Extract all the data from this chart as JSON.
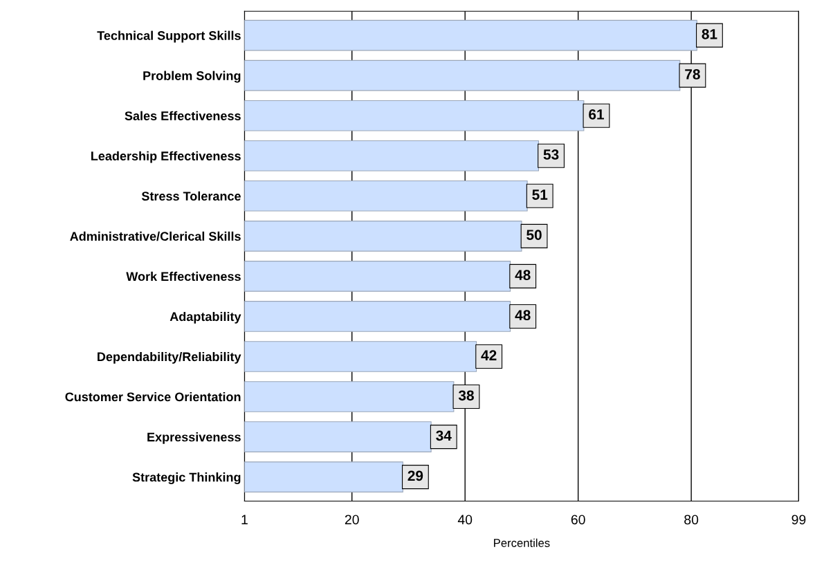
{
  "chart_data": {
    "type": "bar",
    "orientation": "horizontal",
    "xlabel": "Percentiles",
    "categories": [
      "Technical Support Skills",
      "Problem Solving",
      "Sales Effectiveness",
      "Leadership Effectiveness",
      "Stress Tolerance",
      "Administrative/Clerical Skills",
      "Work Effectiveness",
      "Adaptability",
      "Dependability/Reliability",
      "Customer Service Orientation",
      "Expressiveness",
      "Strategic Thinking"
    ],
    "values": [
      81,
      78,
      61,
      53,
      51,
      50,
      48,
      48,
      42,
      38,
      34,
      29
    ],
    "color": "#cce0ff",
    "xlim": [
      1,
      99
    ],
    "xticks": [
      1,
      20,
      40,
      60,
      80,
      99
    ],
    "grid": "x",
    "data_labels": true
  }
}
